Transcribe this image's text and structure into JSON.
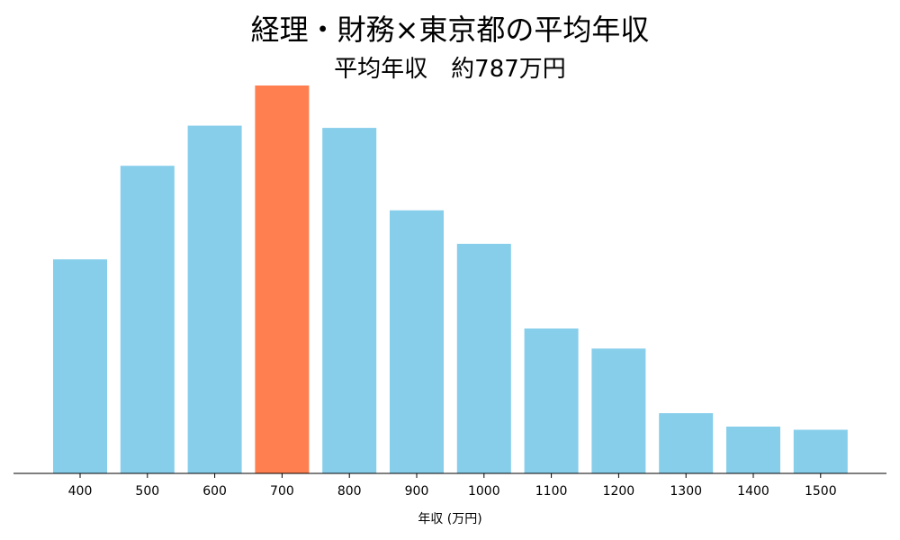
{
  "chart_data": {
    "type": "bar",
    "title": "経理・財務×東京都の平均年収",
    "subtitle": "平均年収　約787万円",
    "xlabel": "年収 (万円)",
    "ylabel": "",
    "categories": [
      "400",
      "500",
      "600",
      "700",
      "800",
      "900",
      "1000",
      "1100",
      "1200",
      "1300",
      "1400",
      "1500"
    ],
    "values": [
      48,
      69,
      78,
      87,
      77.5,
      59,
      51.5,
      32.5,
      28,
      13.5,
      10.5,
      9.8
    ],
    "ylim": [
      0,
      87
    ],
    "highlight_category": "700",
    "colors": {
      "bar": "#87CEEB",
      "highlight": "#FF7F50",
      "axis": "#000000"
    },
    "grid": false,
    "legend": "none"
  }
}
